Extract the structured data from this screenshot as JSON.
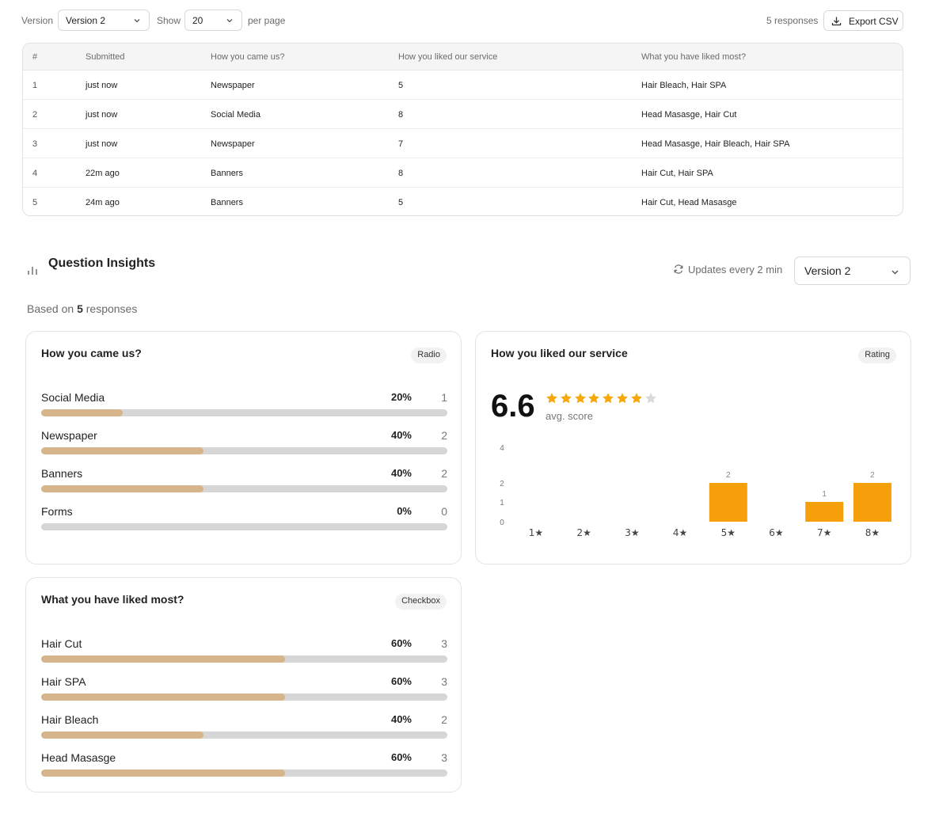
{
  "toolbar": {
    "version_label": "Version",
    "version_value": "Version 2",
    "show_label": "Show",
    "show_value": "20",
    "per_page_label": "per page",
    "responses_count": "5 responses",
    "export_label": "Export CSV"
  },
  "table": {
    "headers": [
      "#",
      "Submitted",
      "How you came us?",
      "How you liked our service",
      "What you have liked most?"
    ],
    "rows": [
      [
        "1",
        "just now",
        "Newspaper",
        "5",
        "Hair Bleach, Hair SPA"
      ],
      [
        "2",
        "just now",
        "Social Media",
        "8",
        "Head Masasge, Hair Cut"
      ],
      [
        "3",
        "just now",
        "Newspaper",
        "7",
        "Head Masasge, Hair Bleach, Hair SPA"
      ],
      [
        "4",
        "22m ago",
        "Banners",
        "8",
        "Hair Cut, Hair SPA"
      ],
      [
        "5",
        "24m ago",
        "Banners",
        "5",
        "Hair Cut, Head Masasge"
      ]
    ]
  },
  "insights": {
    "title": "Question Insights",
    "updates": "Updates every 2 min",
    "version_value": "Version 2",
    "based_on_prefix": "Based on ",
    "based_on_count": "5",
    "based_on_suffix": " responses"
  },
  "cards": {
    "came": {
      "title": "How you came us?",
      "badge": "Radio",
      "options": [
        {
          "label": "Social Media",
          "pct": "20%",
          "count": "1",
          "fraction": 0.2
        },
        {
          "label": "Newspaper",
          "pct": "40%",
          "count": "2",
          "fraction": 0.4
        },
        {
          "label": "Banners",
          "pct": "40%",
          "count": "2",
          "fraction": 0.4
        },
        {
          "label": "Forms",
          "pct": "0%",
          "count": "0",
          "fraction": 0.0
        }
      ]
    },
    "liked": {
      "title": "What you have liked most?",
      "badge": "Checkbox",
      "options": [
        {
          "label": "Hair Cut",
          "pct": "60%",
          "count": "3",
          "fraction": 0.6
        },
        {
          "label": "Hair SPA",
          "pct": "60%",
          "count": "3",
          "fraction": 0.6
        },
        {
          "label": "Hair Bleach",
          "pct": "40%",
          "count": "2",
          "fraction": 0.4
        },
        {
          "label": "Head Masasge",
          "pct": "60%",
          "count": "3",
          "fraction": 0.6
        }
      ]
    },
    "rating": {
      "title": "How you liked our service",
      "badge": "Rating",
      "avg": "6.6",
      "avg_label": "avg. score",
      "stars_total": 8,
      "stars_filled": 7
    }
  },
  "colors": {
    "bar_fill": "#d6b48c",
    "bar_track": "#d6d6d6",
    "rating_bar": "#f59f0b",
    "star_filled": "#f5a70b",
    "star_empty": "#d9d9d9"
  },
  "chart_data": {
    "type": "bar",
    "categories": [
      "1★",
      "2★",
      "3★",
      "4★",
      "5★",
      "6★",
      "7★",
      "8★"
    ],
    "values": [
      0,
      0,
      0,
      0,
      2,
      0,
      1,
      2
    ],
    "y_ticks": [
      "0",
      "1",
      "2",
      "4"
    ],
    "ylim": [
      0,
      4
    ],
    "grid": false,
    "title": "",
    "xlabel": "",
    "ylabel": ""
  }
}
